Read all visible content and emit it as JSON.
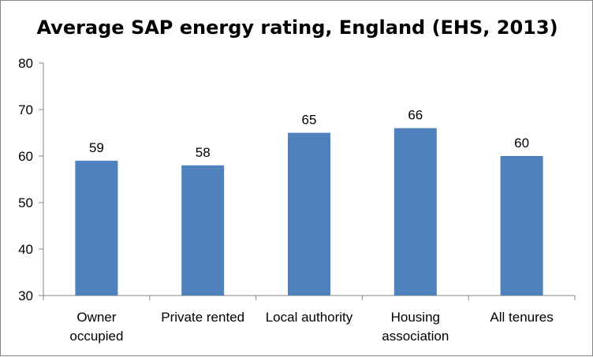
{
  "chart_data": {
    "type": "bar",
    "title": "Average SAP energy rating, England  (EHS, 2013)",
    "categories": [
      [
        "Owner",
        "occupied"
      ],
      [
        "Private rented"
      ],
      [
        "Local authority"
      ],
      [
        "Housing",
        "association"
      ],
      [
        "All tenures"
      ]
    ],
    "values": [
      59,
      58,
      65,
      66,
      60
    ],
    "ylim": [
      30,
      80
    ],
    "yticks": [
      30,
      40,
      50,
      60,
      70,
      80
    ],
    "grid": false,
    "data_labels": true,
    "bar_color": "#4f81bd",
    "xlabel": "",
    "ylabel": ""
  }
}
